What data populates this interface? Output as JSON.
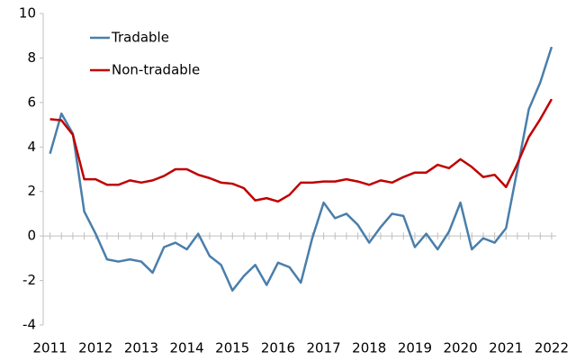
{
  "chart_data": {
    "type": "line",
    "x": [
      2011,
      2011.25,
      2011.5,
      2011.75,
      2012,
      2012.25,
      2012.5,
      2012.75,
      2013,
      2013.25,
      2013.5,
      2013.75,
      2014,
      2014.25,
      2014.5,
      2014.75,
      2015,
      2015.25,
      2015.5,
      2015.75,
      2016,
      2016.25,
      2016.5,
      2016.75,
      2017,
      2017.25,
      2017.5,
      2017.75,
      2018,
      2018.25,
      2018.5,
      2018.75,
      2019,
      2019.25,
      2019.5,
      2019.75,
      2020,
      2020.25,
      2020.5,
      2020.75,
      2021,
      2021.25,
      2021.5,
      2021.75,
      2022
    ],
    "series": [
      {
        "name": "Tradable",
        "color": "#4a7eab",
        "values": [
          3.7,
          5.5,
          4.6,
          1.1,
          0.1,
          -1.05,
          -1.15,
          -1.05,
          -1.15,
          -1.65,
          -0.5,
          -0.3,
          -0.6,
          0.1,
          -0.9,
          -1.3,
          -2.45,
          -1.8,
          -1.3,
          -2.2,
          -1.2,
          -1.4,
          -2.1,
          -0.1,
          1.5,
          0.8,
          1.0,
          0.5,
          -0.3,
          0.4,
          1.0,
          0.9,
          -0.5,
          0.1,
          -0.6,
          0.2,
          1.5,
          -0.6,
          -0.1,
          -0.3,
          0.35,
          3.0,
          5.7,
          6.9,
          8.5
        ]
      },
      {
        "name": "Non-tradable",
        "color": "#c00000",
        "values": [
          5.25,
          5.2,
          4.55,
          2.55,
          2.55,
          2.3,
          2.3,
          2.5,
          2.4,
          2.5,
          2.7,
          3.0,
          3.0,
          2.75,
          2.6,
          2.4,
          2.35,
          2.15,
          1.6,
          1.7,
          1.55,
          1.85,
          2.4,
          2.4,
          2.45,
          2.45,
          2.55,
          2.45,
          2.3,
          2.5,
          2.4,
          2.65,
          2.85,
          2.85,
          3.2,
          3.05,
          3.45,
          3.1,
          2.65,
          2.75,
          2.2,
          3.25,
          4.45,
          5.25,
          6.15
        ]
      }
    ],
    "xlim": [
      2010.85,
      2022.1
    ],
    "xticks": [
      2011,
      2012,
      2013,
      2014,
      2015,
      2016,
      2017,
      2018,
      2019,
      2020,
      2021,
      2022
    ],
    "ylim": [
      -4,
      10
    ],
    "yticks": [
      -4,
      -2,
      0,
      2,
      4,
      6,
      8,
      10
    ],
    "legend": "upper-left"
  }
}
